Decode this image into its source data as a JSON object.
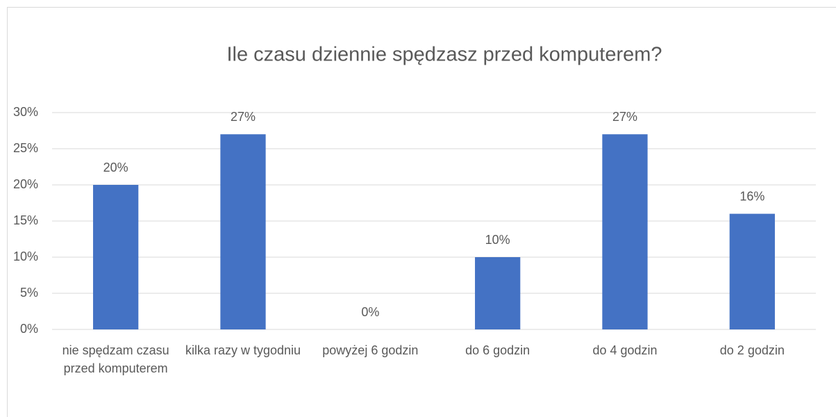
{
  "chart_data": {
    "type": "bar",
    "title": "Ile czasu dziennie spędzasz przed komputerem?",
    "categories": [
      "nie spędzam czasu przed komputerem",
      "kilka razy w tygodniu",
      "powyżej 6 godzin",
      "do 6 godzin",
      "do 4 godzin",
      "do 2 godzin"
    ],
    "values": [
      20,
      27,
      0,
      10,
      27,
      16
    ],
    "value_labels": [
      "20%",
      "27%",
      "0%",
      "10%",
      "27%",
      "16%"
    ],
    "color": "#4472c4",
    "ylim": [
      0,
      30
    ],
    "yticks": [
      {
        "value": 0,
        "label": "0%"
      },
      {
        "value": 5,
        "label": "5%"
      },
      {
        "value": 10,
        "label": "10%"
      },
      {
        "value": 15,
        "label": "15%"
      },
      {
        "value": 20,
        "label": "20%"
      },
      {
        "value": 25,
        "label": "25%"
      },
      {
        "value": 30,
        "label": "30%"
      }
    ],
    "grid": true
  }
}
